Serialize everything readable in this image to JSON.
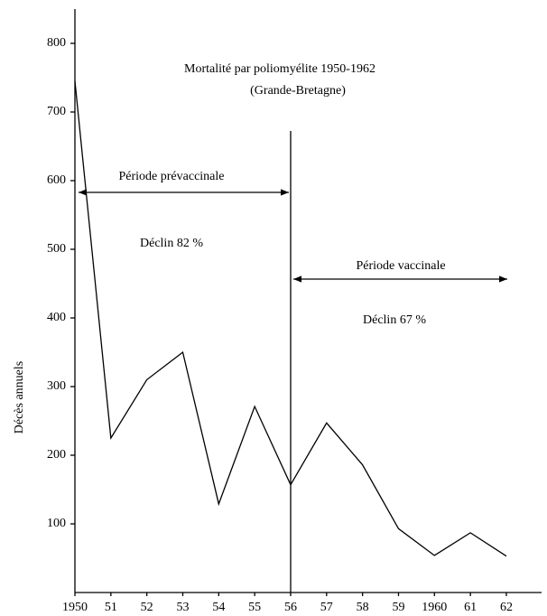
{
  "chart_data": {
    "type": "line",
    "title": "Mortalité par poliomyélite 1950-1962",
    "subtitle": "(Grande-Bretagne)",
    "ylabel": "Décès annuels",
    "categories": [
      "1950",
      "51",
      "52",
      "53",
      "54",
      "55",
      "56",
      "57",
      "58",
      "59",
      "1960",
      "61",
      "62"
    ],
    "values": [
      745,
      225,
      310,
      350,
      129,
      271,
      157,
      247,
      186,
      93,
      54,
      87,
      53
    ],
    "color": "#000000",
    "ylim": [
      0,
      850
    ],
    "yticks": [
      100,
      200,
      300,
      400,
      500,
      600,
      700,
      800
    ],
    "grid": false,
    "annotations": [
      "Période prévaccinale",
      "Déclin  82 %",
      "Période vaccinale",
      "Déclin  67 %"
    ]
  }
}
